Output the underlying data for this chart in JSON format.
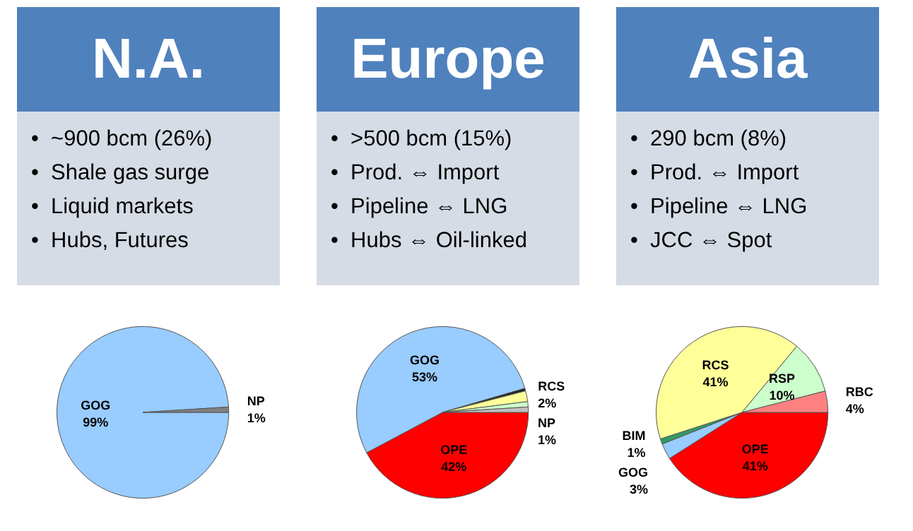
{
  "chart_data": [
    {
      "type": "other",
      "title": "N.A.",
      "annotations": [
        "•  ~900 bcm (26%)",
        "•  Shale gas surge",
        "•  Liquid markets",
        "•  Hubs, Futures"
      ]
    },
    {
      "type": "other",
      "title": "Europe",
      "annotations": [
        "•  >500 bcm (15%)",
        "•  Prod. ⇔ Import",
        "•  Pipeline ⇔ LNG",
        "•  Hubs ⇔ Oil-linked"
      ]
    },
    {
      "type": "other",
      "title": "Asia",
      "annotations": [
        "•  290 bcm (8%)",
        "•  Prod. ⇔ Import",
        "•  Pipeline ⇔ LNG",
        "•  JCC ⇔ Spot"
      ]
    },
    {
      "type": "pie",
      "categories": [
        "GOG",
        "NP"
      ],
      "values": [
        99,
        1
      ],
      "value_labels": [
        "99%",
        "1%"
      ],
      "colors": [
        "#99ccff",
        "#808080"
      ]
    },
    {
      "type": "pie",
      "categories": [
        "OPE",
        "GOG",
        null,
        "RCS",
        null,
        "NP"
      ],
      "values": [
        42,
        53,
        0.5,
        2,
        1,
        1
      ],
      "value_labels": [
        "42%",
        "53%",
        null,
        "2%",
        null,
        "1%"
      ],
      "colors": [
        "#ff0000",
        "#99ccff",
        "#222222",
        "#ffff99",
        "#ccffcc",
        "#c0c0c0"
      ]
    },
    {
      "type": "pie",
      "categories": [
        "OPE",
        "GOG",
        "BIM",
        "RCS",
        "RSP",
        "RBC"
      ],
      "values": [
        41,
        3,
        1,
        41,
        10,
        4
      ],
      "value_labels": [
        "41%",
        "3%",
        "1%",
        "41%",
        "10%",
        "4%"
      ],
      "colors": [
        "#ff0000",
        "#99ccff",
        "#339966",
        "#ffff99",
        "#ccffcc",
        "#ff8080"
      ]
    }
  ]
}
